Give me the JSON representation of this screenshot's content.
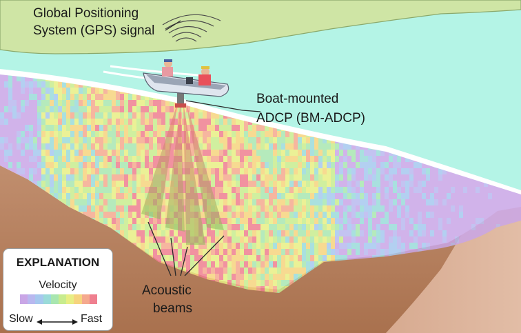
{
  "labels": {
    "gps_line1": "Global Positioning",
    "gps_line2": "System (GPS) signal",
    "adcp_line1": "Boat-mounted",
    "adcp_line2": "ADCP (BM-ADCP)",
    "beams_line1": "Acoustic",
    "beams_line2": "beams"
  },
  "legend": {
    "title": "EXPLANATION",
    "subtitle": "Velocity",
    "slow": "Slow",
    "fast": "Fast",
    "scale_colors": [
      "#c9a6e6",
      "#b8b8ef",
      "#a6c8ee",
      "#9adbd9",
      "#a8e6b0",
      "#c8ec8e",
      "#e8ee84",
      "#f6d47e",
      "#f5a98e",
      "#ef7f8f"
    ]
  },
  "colors": {
    "land": "#cfe5a5",
    "water": "#b4f4e6",
    "bank": "#d0a184",
    "bank_dark": "#a86e4a",
    "profile_bg": "#ffffff"
  }
}
